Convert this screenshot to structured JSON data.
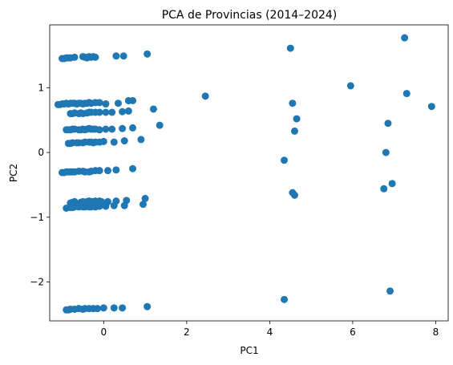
{
  "chart_data": {
    "type": "scatter",
    "title": "PCA de Provincias (2014–2024)",
    "xlabel": "PC1",
    "ylabel": "PC2",
    "xlim": [
      -1.3,
      8.3
    ],
    "ylim": [
      -2.6,
      1.97
    ],
    "xticks": [
      0,
      2,
      4,
      6,
      8
    ],
    "yticks": [
      -2,
      -1,
      0,
      1
    ],
    "grid": false,
    "color": "#1f77b4",
    "series": [
      {
        "points": [
          [
            -1.0,
            1.45
          ],
          [
            -0.95,
            1.45
          ],
          [
            -0.9,
            1.46
          ],
          [
            -0.85,
            1.46
          ],
          [
            -0.8,
            1.46
          ],
          [
            -0.7,
            1.47
          ],
          [
            -0.5,
            1.48
          ],
          [
            -0.45,
            1.47
          ],
          [
            -0.4,
            1.46
          ],
          [
            -0.35,
            1.48
          ],
          [
            -0.3,
            1.47
          ],
          [
            -0.25,
            1.48
          ],
          [
            -0.2,
            1.47
          ],
          [
            0.3,
            1.49
          ],
          [
            0.48,
            1.49
          ],
          [
            1.05,
            1.52
          ],
          [
            -1.1,
            0.74
          ],
          [
            -1.05,
            0.74
          ],
          [
            -1.0,
            0.75
          ],
          [
            -0.95,
            0.75
          ],
          [
            -0.9,
            0.76
          ],
          [
            -0.85,
            0.75
          ],
          [
            -0.8,
            0.76
          ],
          [
            -0.75,
            0.76
          ],
          [
            -0.7,
            0.76
          ],
          [
            -0.65,
            0.75
          ],
          [
            -0.6,
            0.76
          ],
          [
            -0.55,
            0.76
          ],
          [
            -0.5,
            0.75
          ],
          [
            -0.45,
            0.76
          ],
          [
            -0.4,
            0.76
          ],
          [
            -0.35,
            0.77
          ],
          [
            -0.3,
            0.76
          ],
          [
            -0.2,
            0.77
          ],
          [
            -0.1,
            0.77
          ],
          [
            0.05,
            0.75
          ],
          [
            0.35,
            0.76
          ],
          [
            0.6,
            0.8
          ],
          [
            0.7,
            0.8
          ],
          [
            -0.8,
            0.6
          ],
          [
            -0.75,
            0.6
          ],
          [
            -0.7,
            0.61
          ],
          [
            -0.6,
            0.6
          ],
          [
            -0.55,
            0.61
          ],
          [
            -0.5,
            0.6
          ],
          [
            -0.4,
            0.61
          ],
          [
            -0.35,
            0.62
          ],
          [
            -0.3,
            0.62
          ],
          [
            -0.2,
            0.62
          ],
          [
            -0.1,
            0.62
          ],
          [
            0.05,
            0.62
          ],
          [
            0.2,
            0.62
          ],
          [
            0.45,
            0.63
          ],
          [
            0.6,
            0.64
          ],
          [
            1.2,
            0.67
          ],
          [
            -0.9,
            0.35
          ],
          [
            -0.85,
            0.35
          ],
          [
            -0.8,
            0.35
          ],
          [
            -0.75,
            0.36
          ],
          [
            -0.7,
            0.36
          ],
          [
            -0.6,
            0.35
          ],
          [
            -0.55,
            0.35
          ],
          [
            -0.5,
            0.36
          ],
          [
            -0.45,
            0.35
          ],
          [
            -0.4,
            0.36
          ],
          [
            -0.35,
            0.37
          ],
          [
            -0.3,
            0.36
          ],
          [
            -0.25,
            0.36
          ],
          [
            -0.2,
            0.36
          ],
          [
            -0.1,
            0.35
          ],
          [
            0.05,
            0.36
          ],
          [
            0.2,
            0.36
          ],
          [
            0.45,
            0.37
          ],
          [
            0.7,
            0.38
          ],
          [
            1.35,
            0.42
          ],
          [
            -0.85,
            0.14
          ],
          [
            -0.8,
            0.14
          ],
          [
            -0.75,
            0.15
          ],
          [
            -0.65,
            0.15
          ],
          [
            -0.6,
            0.15
          ],
          [
            -0.5,
            0.15
          ],
          [
            -0.45,
            0.16
          ],
          [
            -0.35,
            0.16
          ],
          [
            -0.3,
            0.16
          ],
          [
            -0.25,
            0.15
          ],
          [
            -0.2,
            0.16
          ],
          [
            -0.1,
            0.16
          ],
          [
            0.0,
            0.17
          ],
          [
            0.25,
            0.16
          ],
          [
            0.5,
            0.18
          ],
          [
            0.9,
            0.2
          ],
          [
            -1.0,
            -0.31
          ],
          [
            -0.95,
            -0.31
          ],
          [
            -0.9,
            -0.3
          ],
          [
            -0.85,
            -0.3
          ],
          [
            -0.8,
            -0.3
          ],
          [
            -0.75,
            -0.3
          ],
          [
            -0.7,
            -0.3
          ],
          [
            -0.6,
            -0.29
          ],
          [
            -0.5,
            -0.29
          ],
          [
            -0.45,
            -0.3
          ],
          [
            -0.35,
            -0.3
          ],
          [
            -0.3,
            -0.29
          ],
          [
            -0.2,
            -0.28
          ],
          [
            -0.1,
            -0.28
          ],
          [
            0.1,
            -0.28
          ],
          [
            0.3,
            -0.27
          ],
          [
            0.7,
            -0.25
          ],
          [
            -0.8,
            -0.78
          ],
          [
            -0.75,
            -0.77
          ],
          [
            -0.7,
            -0.76
          ],
          [
            -0.55,
            -0.77
          ],
          [
            -0.5,
            -0.76
          ],
          [
            -0.45,
            -0.77
          ],
          [
            -0.4,
            -0.76
          ],
          [
            -0.35,
            -0.75
          ],
          [
            -0.3,
            -0.76
          ],
          [
            -0.25,
            -0.76
          ],
          [
            -0.2,
            -0.75
          ],
          [
            -0.1,
            -0.75
          ],
          [
            -0.05,
            -0.76
          ],
          [
            0.1,
            -0.76
          ],
          [
            0.3,
            -0.75
          ],
          [
            0.55,
            -0.74
          ],
          [
            1.0,
            -0.71
          ],
          [
            -0.9,
            -0.86
          ],
          [
            -0.8,
            -0.85
          ],
          [
            -0.75,
            -0.85
          ],
          [
            -0.7,
            -0.84
          ],
          [
            -0.6,
            -0.84
          ],
          [
            -0.5,
            -0.84
          ],
          [
            -0.45,
            -0.84
          ],
          [
            -0.35,
            -0.84
          ],
          [
            -0.3,
            -0.84
          ],
          [
            -0.2,
            -0.84
          ],
          [
            -0.1,
            -0.83
          ],
          [
            0.05,
            -0.83
          ],
          [
            0.25,
            -0.82
          ],
          [
            0.5,
            -0.82
          ],
          [
            0.95,
            -0.8
          ],
          [
            -0.9,
            -2.43
          ],
          [
            -0.85,
            -2.43
          ],
          [
            -0.8,
            -2.42
          ],
          [
            -0.7,
            -2.42
          ],
          [
            -0.6,
            -2.41
          ],
          [
            -0.5,
            -2.42
          ],
          [
            -0.45,
            -2.41
          ],
          [
            -0.35,
            -2.41
          ],
          [
            -0.25,
            -2.41
          ],
          [
            -0.15,
            -2.41
          ],
          [
            0.0,
            -2.4
          ],
          [
            0.25,
            -2.4
          ],
          [
            0.45,
            -2.4
          ],
          [
            1.05,
            -2.38
          ],
          [
            2.45,
            0.87
          ],
          [
            4.5,
            1.61
          ],
          [
            4.55,
            0.76
          ],
          [
            4.65,
            0.52
          ],
          [
            4.6,
            0.33
          ],
          [
            4.35,
            -0.12
          ],
          [
            4.55,
            -0.62
          ],
          [
            4.6,
            -0.66
          ],
          [
            4.35,
            -2.27
          ],
          [
            5.95,
            1.03
          ],
          [
            7.25,
            1.77
          ],
          [
            7.3,
            0.91
          ],
          [
            7.9,
            0.71
          ],
          [
            6.85,
            0.45
          ],
          [
            6.8,
            0.0
          ],
          [
            6.75,
            -0.56
          ],
          [
            6.95,
            -0.48
          ],
          [
            6.9,
            -2.14
          ]
        ]
      }
    ]
  }
}
